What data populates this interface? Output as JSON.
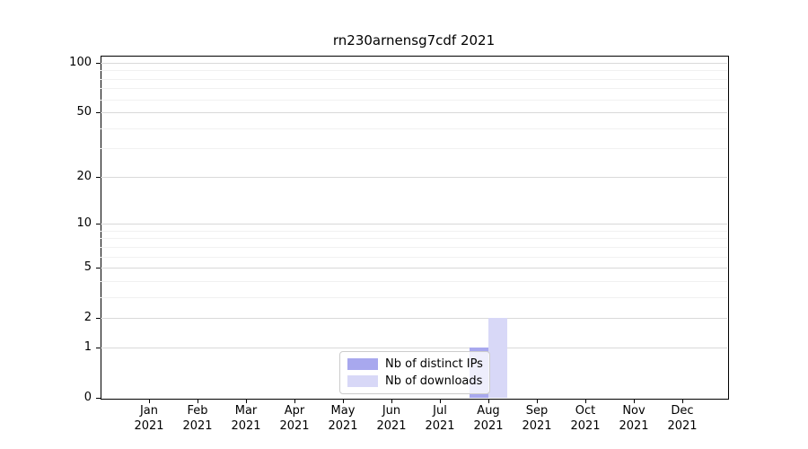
{
  "chart_data": {
    "type": "bar",
    "title": "rn230arnensg7cdf 2021",
    "categories": [
      "Jan 2021",
      "Feb 2021",
      "Mar 2021",
      "Apr 2021",
      "May 2021",
      "Jun 2021",
      "Jul 2021",
      "Aug 2021",
      "Sep 2021",
      "Oct 2021",
      "Nov 2021",
      "Dec 2021"
    ],
    "series": [
      {
        "name": "Nb of distinct IPs",
        "color": "#a8a8ee",
        "values": [
          0,
          0,
          0,
          0,
          0,
          0,
          0,
          1,
          0,
          0,
          0,
          0
        ]
      },
      {
        "name": "Nb of downloads",
        "color": "#d8d8f7",
        "values": [
          0,
          0,
          0,
          0,
          0,
          0,
          0,
          2,
          0,
          0,
          0,
          0
        ]
      }
    ],
    "xlabel": "",
    "ylabel": "",
    "yscale": "log1p",
    "ylim": [
      0,
      110
    ],
    "y_major_ticks": [
      0,
      1,
      2,
      5,
      10,
      20,
      50,
      100
    ],
    "y_minor_ticks": [
      3,
      4,
      6,
      7,
      8,
      9,
      30,
      40,
      60,
      70,
      80,
      90
    ],
    "grid": "horizontal",
    "legend_position": "lower center"
  },
  "x_axis": {
    "months": [
      "Jan",
      "Feb",
      "Mar",
      "Apr",
      "May",
      "Jun",
      "Jul",
      "Aug",
      "Sep",
      "Oct",
      "Nov",
      "Dec"
    ],
    "year": "2021"
  },
  "colors": {
    "grid_major": "#d9d9d9",
    "grid_minor": "#f1f1f1",
    "axis": "#000000",
    "text": "#000000",
    "legend_border": "#cccccc"
  }
}
